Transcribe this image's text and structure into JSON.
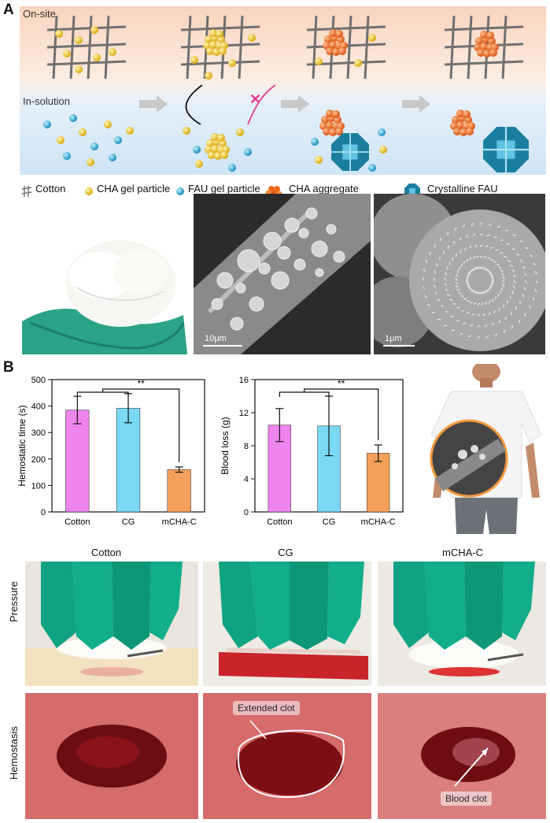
{
  "panels": {
    "a_label": "A",
    "b_label": "B"
  },
  "scheme": {
    "onsite_label": "On-site",
    "insolution_label": "In-solution"
  },
  "legend": {
    "cotton": "Cotton",
    "cha_gel": "CHA gel particle",
    "fau_gel": "FAU gel particle",
    "cha_aggregate": "CHA aggregate",
    "crystalline_fau": "Crystalline FAU"
  },
  "micrographs": {
    "scale_1": "10μm",
    "scale_2": "1μm"
  },
  "colors": {
    "cotton": "#ee84ee",
    "cg": "#7ad9f5",
    "mcha": "#f5a05a",
    "cha_particle": "#f0c419",
    "fau_particle": "#1eaad6",
    "aggregate": "#f06a1c",
    "crystal": "#1a7ea0"
  },
  "chart_data": [
    {
      "type": "bar",
      "categories": [
        "Cotton",
        "CG",
        "mCHA-C"
      ],
      "values": [
        385,
        392,
        160
      ],
      "error": [
        52,
        55,
        10
      ],
      "ylabel": "Hemostatic time (s)",
      "ylim": [
        0,
        500
      ],
      "yticks": [
        0,
        100,
        200,
        300,
        400,
        500
      ],
      "significance": "**"
    },
    {
      "type": "bar",
      "categories": [
        "Cotton",
        "CG",
        "mCHA-C"
      ],
      "values": [
        10.5,
        10.4,
        7.1
      ],
      "error": [
        2.0,
        3.6,
        1.0
      ],
      "ylabel": "Blood loss (g)",
      "ylim": [
        0,
        16
      ],
      "yticks": [
        0,
        4,
        8,
        12,
        16
      ],
      "yticklabels": [
        "0",
        "4",
        "8",
        "12",
        "16"
      ],
      "significance": "**"
    }
  ],
  "photos": {
    "col_titles": [
      "Cotton",
      "CG",
      "mCHA-C"
    ],
    "row_titles": [
      "Pressure",
      "Hemostasis"
    ],
    "extended_clot": "Extended clot",
    "blood_clot": "Blood clot"
  }
}
